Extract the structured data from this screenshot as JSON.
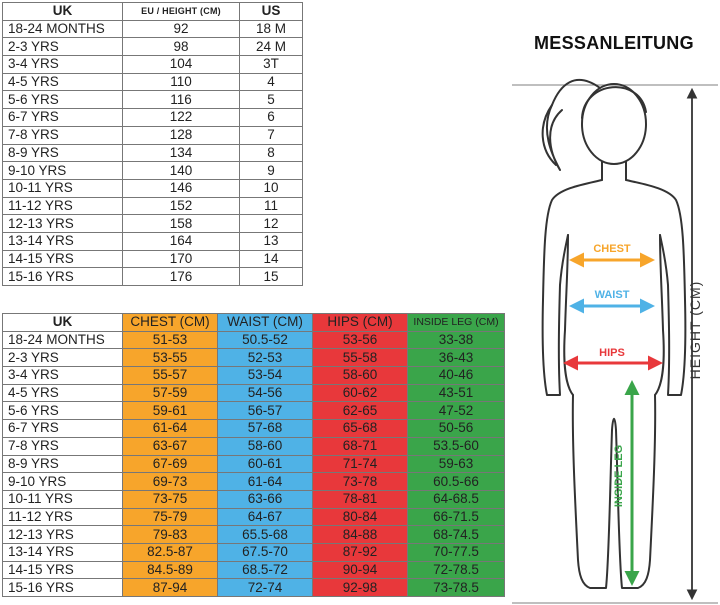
{
  "size_table": {
    "headers": {
      "uk": "UK",
      "eu": "EU / HEIGHT (CM)",
      "us": "US"
    },
    "rows": [
      {
        "uk": "18-24 MONTHS",
        "eu": "92",
        "us": "18 M"
      },
      {
        "uk": "2-3 YRS",
        "eu": "98",
        "us": "24 M"
      },
      {
        "uk": "3-4 YRS",
        "eu": "104",
        "us": "3T"
      },
      {
        "uk": "4-5 YRS",
        "eu": "110",
        "us": "4"
      },
      {
        "uk": "5-6 YRS",
        "eu": "116",
        "us": "5"
      },
      {
        "uk": "6-7 YRS",
        "eu": "122",
        "us": "6"
      },
      {
        "uk": "7-8 YRS",
        "eu": "128",
        "us": "7"
      },
      {
        "uk": "8-9 YRS",
        "eu": "134",
        "us": "8"
      },
      {
        "uk": "9-10 YRS",
        "eu": "140",
        "us": "9"
      },
      {
        "uk": "10-11 YRS",
        "eu": "146",
        "us": "10"
      },
      {
        "uk": "11-12 YRS",
        "eu": "152",
        "us": "11"
      },
      {
        "uk": "12-13 YRS",
        "eu": "158",
        "us": "12"
      },
      {
        "uk": "13-14 YRS",
        "eu": "164",
        "us": "13"
      },
      {
        "uk": "14-15 YRS",
        "eu": "170",
        "us": "14"
      },
      {
        "uk": "15-16 YRS",
        "eu": "176",
        "us": "15"
      }
    ]
  },
  "measure_table": {
    "headers": {
      "uk": "UK",
      "chest": "CHEST (CM)",
      "waist": "WAIST (CM)",
      "hips": "HIPS (CM)",
      "leg": "INSIDE LEG (CM)"
    },
    "rows": [
      {
        "uk": "18-24 MONTHS",
        "chest": "51-53",
        "waist": "50.5-52",
        "hips": "53-56",
        "leg": "33-38"
      },
      {
        "uk": "2-3 YRS",
        "chest": "53-55",
        "waist": "52-53",
        "hips": "55-58",
        "leg": "36-43"
      },
      {
        "uk": "3-4 YRS",
        "chest": "55-57",
        "waist": "53-54",
        "hips": "58-60",
        "leg": "40-46"
      },
      {
        "uk": "4-5 YRS",
        "chest": "57-59",
        "waist": "54-56",
        "hips": "60-62",
        "leg": "43-51"
      },
      {
        "uk": "5-6 YRS",
        "chest": "59-61",
        "waist": "56-57",
        "hips": "62-65",
        "leg": "47-52"
      },
      {
        "uk": "6-7 YRS",
        "chest": "61-64",
        "waist": "57-68",
        "hips": "65-68",
        "leg": "50-56"
      },
      {
        "uk": "7-8 YRS",
        "chest": "63-67",
        "waist": "58-60",
        "hips": "68-71",
        "leg": "53.5-60"
      },
      {
        "uk": "8-9 YRS",
        "chest": "67-69",
        "waist": "60-61",
        "hips": "71-74",
        "leg": "59-63"
      },
      {
        "uk": "9-10 YRS",
        "chest": "69-73",
        "waist": "61-64",
        "hips": "73-78",
        "leg": "60.5-66"
      },
      {
        "uk": "10-11 YRS",
        "chest": "73-75",
        "waist": "63-66",
        "hips": "78-81",
        "leg": "64-68.5"
      },
      {
        "uk": "11-12 YRS",
        "chest": "75-79",
        "waist": "64-67",
        "hips": "80-84",
        "leg": "66-71.5"
      },
      {
        "uk": "12-13 YRS",
        "chest": "79-83",
        "waist": "65.5-68",
        "hips": "84-88",
        "leg": "68-74.5"
      },
      {
        "uk": "13-14 YRS",
        "chest": "82.5-87",
        "waist": "67.5-70",
        "hips": "87-92",
        "leg": "70-77.5"
      },
      {
        "uk": "14-15 YRS",
        "chest": "84.5-89",
        "waist": "68.5-72",
        "hips": "90-94",
        "leg": "72-78.5"
      },
      {
        "uk": "15-16 YRS",
        "chest": "87-94",
        "waist": "72-74",
        "hips": "92-98",
        "leg": "73-78.5"
      }
    ]
  },
  "figure": {
    "title": "MESSANLEITUNG",
    "labels": {
      "chest": "CHEST",
      "waist": "WAIST",
      "hips": "HIPS",
      "inside_leg": "INSIDE LEG",
      "height": "HEIGHT (CM)"
    },
    "icons": {
      "figure": "child-silhouette-icon",
      "arrows": "measure-arrow-icon"
    }
  },
  "colors": {
    "chest": "#f7a52b",
    "waist": "#4fb2e6",
    "hips": "#e8383b",
    "inside_leg": "#3aa54a",
    "height_arrow": "#333333"
  }
}
